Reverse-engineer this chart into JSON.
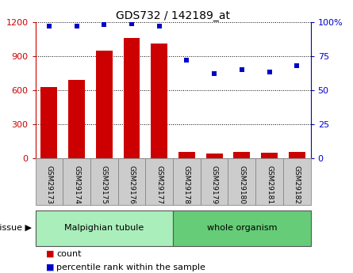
{
  "title": "GDS732 / 142189_at",
  "samples": [
    "GSM29173",
    "GSM29174",
    "GSM29175",
    "GSM29176",
    "GSM29177",
    "GSM29178",
    "GSM29179",
    "GSM29180",
    "GSM29181",
    "GSM29182"
  ],
  "counts": [
    630,
    690,
    950,
    1060,
    1010,
    55,
    45,
    55,
    50,
    55
  ],
  "percentiles": [
    97,
    97,
    98,
    98.5,
    97,
    72,
    62,
    65,
    63,
    68
  ],
  "left_ylim": [
    0,
    1200
  ],
  "right_ylim": [
    0,
    100
  ],
  "left_yticks": [
    0,
    300,
    600,
    900,
    1200
  ],
  "right_yticks": [
    0,
    25,
    50,
    75,
    100
  ],
  "right_yticklabels": [
    "0",
    "25",
    "50",
    "75",
    "100%"
  ],
  "bar_color": "#cc0000",
  "dot_color": "#0000cc",
  "tissue_groups": [
    {
      "label": "Malpighian tubule",
      "start": 0,
      "end": 5,
      "color": "#aaeebb"
    },
    {
      "label": "whole organism",
      "start": 5,
      "end": 10,
      "color": "#66cc77"
    }
  ],
  "tissue_label": "tissue",
  "legend_count_label": "count",
  "legend_percentile_label": "percentile rank within the sample",
  "bar_color_red": "#cc0000",
  "dot_color_blue": "#0000cc",
  "tick_bg_color": "#cccccc",
  "bg_white": "#ffffff",
  "n_samples": 10
}
